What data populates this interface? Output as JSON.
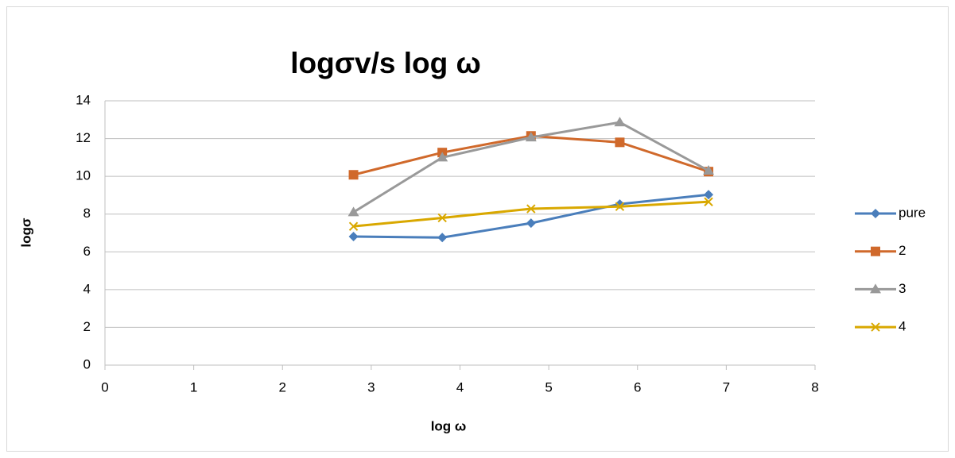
{
  "chart_data": {
    "type": "line",
    "title": "logσv/s log ω",
    "x_label": "log ω",
    "y_label": "logσ",
    "x": [
      2.8,
      3.8,
      4.8,
      5.8,
      6.8
    ],
    "series": [
      {
        "name": "pure",
        "color": "#4a7ebb",
        "marker": "diamond",
        "values": [
          6.81,
          6.76,
          7.52,
          8.53,
          9.03
        ]
      },
      {
        "name": "2",
        "color": "#d0692b",
        "marker": "square",
        "values": [
          10.08,
          11.26,
          12.14,
          11.8,
          10.25
        ]
      },
      {
        "name": "3",
        "color": "#999999",
        "marker": "triangle",
        "values": [
          8.1,
          11.0,
          12.06,
          12.86,
          10.3
        ]
      },
      {
        "name": "4",
        "color": "#d9a800",
        "marker": "x",
        "values": [
          7.35,
          7.8,
          8.28,
          8.4,
          8.65
        ]
      }
    ],
    "xlim": [
      0,
      8
    ],
    "xticks": [
      0,
      1,
      2,
      3,
      4,
      5,
      6,
      7,
      8
    ],
    "ylim": [
      0,
      14
    ],
    "yticks": [
      0,
      2,
      4,
      6,
      8,
      10,
      12,
      14
    ],
    "grid": true,
    "legend": "right"
  }
}
